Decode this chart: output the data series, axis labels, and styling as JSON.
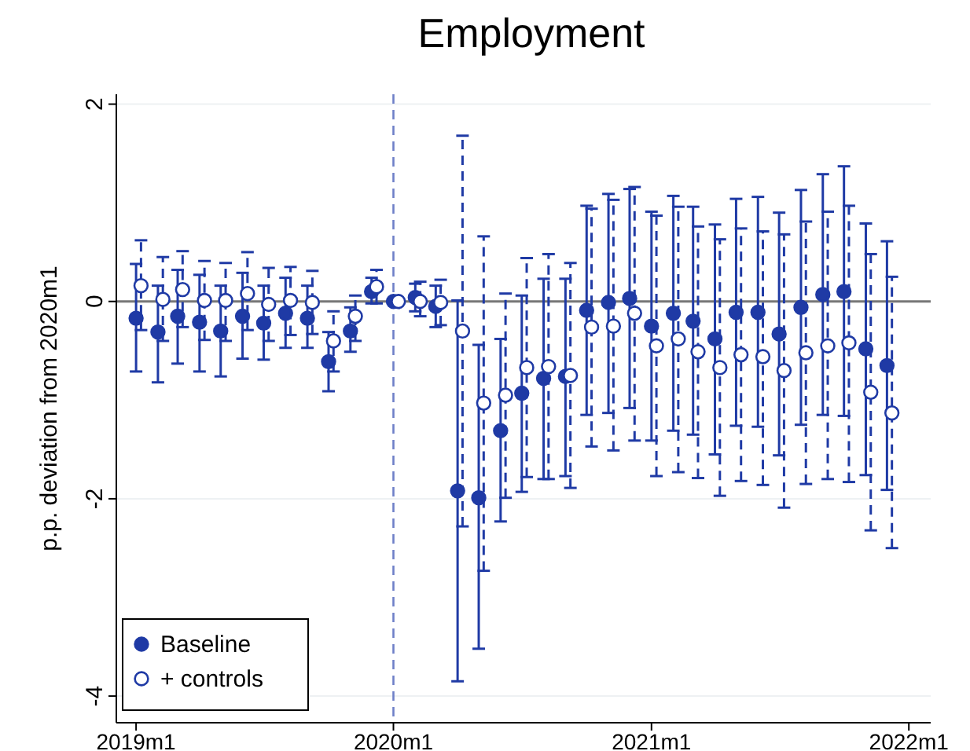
{
  "chart_data": {
    "type": "scatter",
    "title": "Employment",
    "ylabel": "p.p. deviation from 2020m1",
    "xlim": [
      "2018-12-04",
      "2022-02-01"
    ],
    "xticks": [
      {
        "value": "2019-01",
        "label": "2019m1"
      },
      {
        "value": "2020-01",
        "label": "2020m1"
      },
      {
        "value": "2021-01",
        "label": "2021m1"
      },
      {
        "value": "2022-01",
        "label": "2022m1"
      }
    ],
    "ylim": [
      -4.27,
      2.1
    ],
    "yticks": [
      -4,
      -2,
      0,
      2
    ],
    "grid": "y",
    "legend": "bottom left",
    "marker": "circle",
    "ref_lines": [
      {
        "axis": "y",
        "value": 0,
        "color": "#777777",
        "line_style": "solid"
      },
      {
        "axis": "x",
        "value": "2020-01",
        "color": "#6f80c8",
        "line_style": "dashed"
      }
    ],
    "series": [
      {
        "name": "Baseline",
        "color": "#1f3aa5",
        "line_style": "solid",
        "x": [
          "2019-01",
          "2019-02",
          "2019-03",
          "2019-04",
          "2019-05",
          "2019-06",
          "2019-07",
          "2019-08",
          "2019-09",
          "2019-10",
          "2019-11",
          "2019-12",
          "2020-01",
          "2020-02",
          "2020-03",
          "2020-04",
          "2020-05",
          "2020-06",
          "2020-07",
          "2020-08",
          "2020-09",
          "2020-10",
          "2020-11",
          "2020-12",
          "2021-01",
          "2021-02",
          "2021-03",
          "2021-04",
          "2021-05",
          "2021-06",
          "2021-07",
          "2021-08",
          "2021-09",
          "2021-10",
          "2021-11",
          "2021-12"
        ],
        "values": [
          -0.17,
          -0.31,
          -0.15,
          -0.21,
          -0.3,
          -0.15,
          -0.22,
          -0.12,
          -0.17,
          -0.61,
          -0.3,
          0.1,
          0,
          0.04,
          -0.05,
          -1.92,
          -1.99,
          -1.31,
          -0.93,
          -0.78,
          -0.76,
          -0.09,
          -0.01,
          0.03,
          -0.25,
          -0.12,
          -0.2,
          -0.38,
          -0.11,
          -0.11,
          -0.33,
          -0.06,
          0.07,
          0.1,
          -0.48,
          -0.65
        ],
        "errors": [
          [
            -0.71,
            0.38
          ],
          [
            -0.82,
            0.16
          ],
          [
            -0.63,
            0.32
          ],
          [
            -0.71,
            0.27
          ],
          [
            -0.76,
            0.16
          ],
          [
            -0.58,
            0.29
          ],
          [
            -0.59,
            0.16
          ],
          [
            -0.47,
            0.24
          ],
          [
            -0.47,
            0.16
          ],
          [
            -0.91,
            -0.31
          ],
          [
            -0.51,
            -0.06
          ],
          [
            -0.02,
            0.24
          ],
          null,
          [
            -0.1,
            0.18
          ],
          [
            -0.26,
            0.16
          ],
          [
            -3.85,
            0.01
          ],
          [
            -3.52,
            -0.44
          ],
          [
            -2.23,
            -0.38
          ],
          [
            -1.93,
            0.06
          ],
          [
            -1.8,
            0.23
          ],
          [
            -1.77,
            0.23
          ],
          [
            -1.15,
            0.97
          ],
          [
            -1.13,
            1.09
          ],
          [
            -1.08,
            1.14
          ],
          [
            -1.41,
            0.91
          ],
          [
            -1.31,
            1.07
          ],
          [
            -1.35,
            0.96
          ],
          [
            -1.55,
            0.78
          ],
          [
            -1.26,
            1.04
          ],
          [
            -1.27,
            1.06
          ],
          [
            -1.56,
            0.9
          ],
          [
            -1.25,
            1.13
          ],
          [
            -1.15,
            1.29
          ],
          [
            -1.16,
            1.37
          ],
          [
            -1.76,
            0.79
          ],
          [
            -1.91,
            0.61
          ]
        ]
      },
      {
        "name": "+ controls",
        "color": "#1f3aa5",
        "line_style": "dashed",
        "x": [
          "2019-01-08",
          "2019-02-08",
          "2019-03-08",
          "2019-04-08",
          "2019-05-08",
          "2019-06-08",
          "2019-07-08",
          "2019-08-08",
          "2019-09-08",
          "2019-10-08",
          "2019-11-08",
          "2019-12-08",
          "2020-01-08",
          "2020-02-08",
          "2020-03-08",
          "2020-04-08",
          "2020-05-08",
          "2020-06-08",
          "2020-07-08",
          "2020-08-08",
          "2020-09-08",
          "2020-10-08",
          "2020-11-08",
          "2020-12-08",
          "2021-01-08",
          "2021-02-08",
          "2021-03-08",
          "2021-04-08",
          "2021-05-08",
          "2021-06-08",
          "2021-07-08",
          "2021-08-08",
          "2021-09-08",
          "2021-10-08",
          "2021-11-08",
          "2021-12-08"
        ],
        "values": [
          0.16,
          0.02,
          0.12,
          0.01,
          0.01,
          0.08,
          -0.03,
          0.01,
          -0.01,
          -0.4,
          -0.15,
          0.15,
          0,
          0,
          -0.01,
          -0.3,
          -1.03,
          -0.95,
          -0.67,
          -0.66,
          -0.75,
          -0.26,
          -0.25,
          -0.12,
          -0.45,
          -0.38,
          -0.51,
          -0.67,
          -0.54,
          -0.56,
          -0.7,
          -0.52,
          -0.45,
          -0.42,
          -0.92,
          -1.13
        ],
        "errors": [
          [
            -0.29,
            0.62
          ],
          [
            -0.4,
            0.45
          ],
          [
            -0.26,
            0.51
          ],
          [
            -0.39,
            0.41
          ],
          [
            -0.4,
            0.39
          ],
          [
            -0.29,
            0.5
          ],
          [
            -0.4,
            0.34
          ],
          [
            -0.34,
            0.35
          ],
          [
            -0.33,
            0.31
          ],
          [
            -0.71,
            -0.1
          ],
          [
            -0.4,
            0.06
          ],
          [
            -0.02,
            0.32
          ],
          null,
          [
            -0.15,
            0.2
          ],
          [
            -0.24,
            0.22
          ],
          [
            -2.28,
            1.68
          ],
          [
            -2.73,
            0.66
          ],
          [
            -1.99,
            0.08
          ],
          [
            -1.78,
            0.44
          ],
          [
            -1.8,
            0.48
          ],
          [
            -1.89,
            0.39
          ],
          [
            -1.47,
            0.94
          ],
          [
            -1.51,
            1.03
          ],
          [
            -1.41,
            1.16
          ],
          [
            -1.77,
            0.87
          ],
          [
            -1.73,
            0.96
          ],
          [
            -1.79,
            0.76
          ],
          [
            -1.97,
            0.63
          ],
          [
            -1.82,
            0.74
          ],
          [
            -1.86,
            0.71
          ],
          [
            -2.09,
            0.68
          ],
          [
            -1.85,
            0.81
          ],
          [
            -1.8,
            0.91
          ],
          [
            -1.83,
            0.97
          ],
          [
            -2.32,
            0.48
          ],
          [
            -2.5,
            0.25
          ]
        ]
      }
    ]
  }
}
